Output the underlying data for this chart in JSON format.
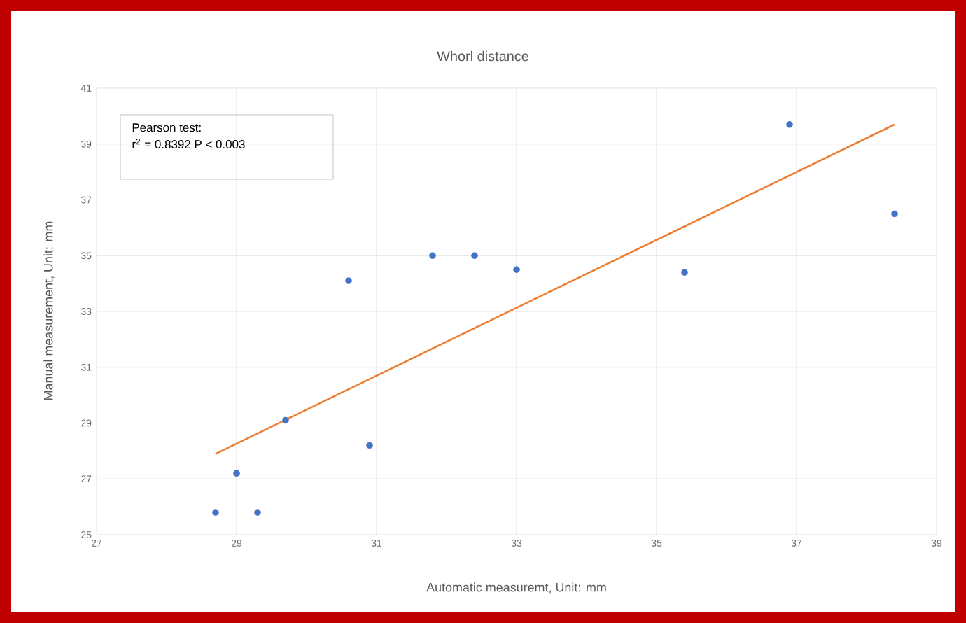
{
  "chart_data": {
    "type": "scatter",
    "title": "Whorl distance",
    "xlabel": "Automatic measuremt, Unit: mm",
    "ylabel": "Manual measurement, Unit: mm",
    "annotations": [
      "Pearson test:",
      "r$^{2}$ = 0.8392     P < 0.003"
    ],
    "series": [
      {
        "marker": "circle",
        "color": "#4472c4",
        "x": [
          28.7,
          29.0,
          29.3,
          29.7,
          30.6,
          30.9,
          31.8,
          32.4,
          33.0,
          35.4,
          36.9,
          38.4
        ],
        "values": [
          25.8,
          27.2,
          25.8,
          29.1,
          34.1,
          28.2,
          35.0,
          35.0,
          34.5,
          34.4,
          39.7,
          36.5
        ]
      },
      {
        "type": "line",
        "marker": "none",
        "color": "#ed7d31",
        "x": [
          28.7,
          38.4
        ],
        "values": [
          27.9,
          39.7
        ]
      }
    ],
    "xlim": [
      27,
      39
    ],
    "ylim": [
      25,
      41
    ],
    "xticks": [
      27,
      29,
      31,
      33,
      35,
      37,
      39
    ],
    "yticks": [
      25,
      27,
      29,
      31,
      33,
      35,
      37,
      39,
      41
    ],
    "grid": true
  }
}
